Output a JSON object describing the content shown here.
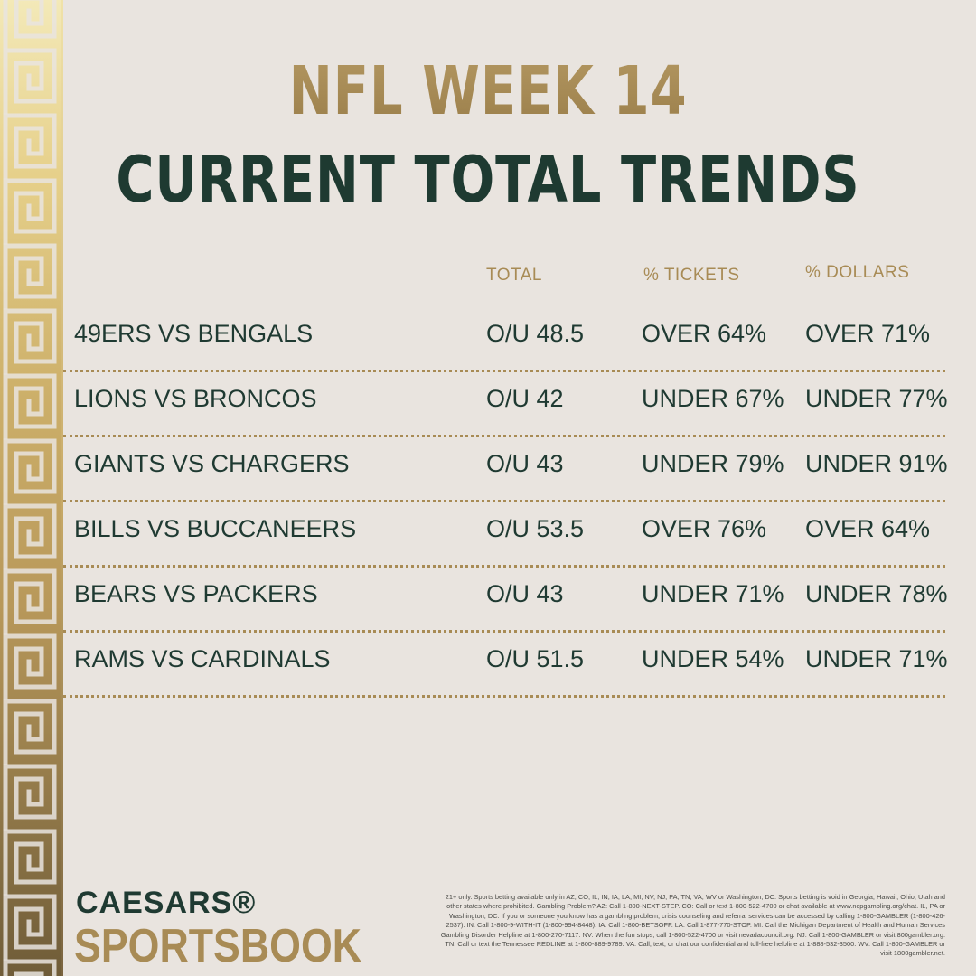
{
  "title": {
    "line1": "NFL WEEK 14",
    "line2": "CURRENT TOTAL TRENDS"
  },
  "headers": {
    "total": "TOTAL",
    "tickets": "% TICKETS",
    "dollars": "% DOLLARS"
  },
  "rows": [
    {
      "matchup": "49ERS VS BENGALS",
      "total": "O/U 48.5",
      "tickets": "OVER 64%",
      "dollars": "OVER 71%"
    },
    {
      "matchup": "LIONS VS BRONCOS",
      "total": "O/U 42",
      "tickets": "UNDER 67%",
      "dollars": "UNDER 77%"
    },
    {
      "matchup": "GIANTS VS CHARGERS",
      "total": "O/U 43",
      "tickets": "UNDER 79%",
      "dollars": "UNDER 91%"
    },
    {
      "matchup": "BILLS VS BUCCANEERS",
      "total": "O/U 53.5",
      "tickets": "OVER 76%",
      "dollars": "OVER 64%"
    },
    {
      "matchup": "BEARS VS PACKERS",
      "total": "O/U 43",
      "tickets": "UNDER 71%",
      "dollars": "UNDER 78%"
    },
    {
      "matchup": "RAMS VS CARDINALS",
      "total": "O/U 51.5",
      "tickets": "UNDER 54%",
      "dollars": "UNDER 71%"
    }
  ],
  "logo": {
    "top": "CAESARS®",
    "bottom": "SPORTSBOOK"
  },
  "disclaimer": "21+ only. Sports betting available only in AZ, CO, IL, IN, IA, LA, MI, NV, NJ, PA, TN, VA, WV or Washington, DC. Sports betting is void in Georgia, Hawaii, Ohio, Utah and other states where prohibited. Gambling Problem? AZ: Call 1-800-NEXT-STEP. CO: Call or text 1-800-522-4700 or chat available at www.ncpgambling.org/chat. IL, PA or Washington, DC: If you or someone you know has a gambling problem, crisis counseling and referral services can be accessed by calling 1-800-GAMBLER (1-800-426-2537). IN: Call 1-800-9-WITH-IT (1-800-994-8448). IA: Call 1-800-BETSOFF. LA: Call 1-877-770-STOP. MI: Call the Michigan Department of Health and Human Services Gambling Disorder Helpline at 1-800-270-7117. NV: When the fun stops, call 1-800-522-4700 or visit nevadacouncil.org. NJ: Call 1-800-GAMBLER or visit 800gambler.org. TN: Call or text the Tennessee REDLINE at 1-800-889-9789. VA: Call, text, or chat our confidential and toll-free helpline at 1-888-532-3500. WV: Call 1-800-GAMBLER or visit 1800gambler.net.",
  "colors": {
    "background": "#e9e4df",
    "gold": "#a88b55",
    "green": "#1f3a32"
  }
}
